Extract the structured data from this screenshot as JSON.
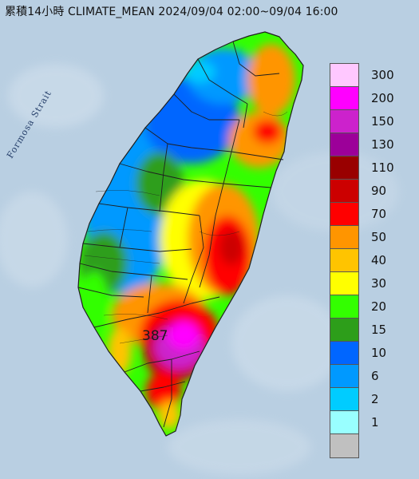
{
  "title": "累積14小時 CLIMATE_MEAN 2024/09/04 02:00~09/04 16:00",
  "strait_label": "Formosa Strait",
  "max_value_label": "387",
  "legend": {
    "items": [
      {
        "label": "300",
        "color": "#ffc8ff"
      },
      {
        "label": "200",
        "color": "#ff00ff"
      },
      {
        "label": "150",
        "color": "#cc22cc"
      },
      {
        "label": "130",
        "color": "#9c0099"
      },
      {
        "label": "110",
        "color": "#990000"
      },
      {
        "label": "90",
        "color": "#cc0000"
      },
      {
        "label": "70",
        "color": "#ff0000"
      },
      {
        "label": "50",
        "color": "#ff9500"
      },
      {
        "label": "40",
        "color": "#ffc400"
      },
      {
        "label": "30",
        "color": "#ffff00"
      },
      {
        "label": "20",
        "color": "#33ff00"
      },
      {
        "label": "15",
        "color": "#2d9e1a"
      },
      {
        "label": "10",
        "color": "#0066ff"
      },
      {
        "label": "6",
        "color": "#0099ff"
      },
      {
        "label": "2",
        "color": "#00ccff"
      },
      {
        "label": "1",
        "color": "#99ffff"
      },
      {
        "label": "",
        "color": "#c0c0c0"
      }
    ]
  },
  "colors": {
    "sea": "#b9cfe2",
    "border_lines": "#1f1f1f"
  }
}
